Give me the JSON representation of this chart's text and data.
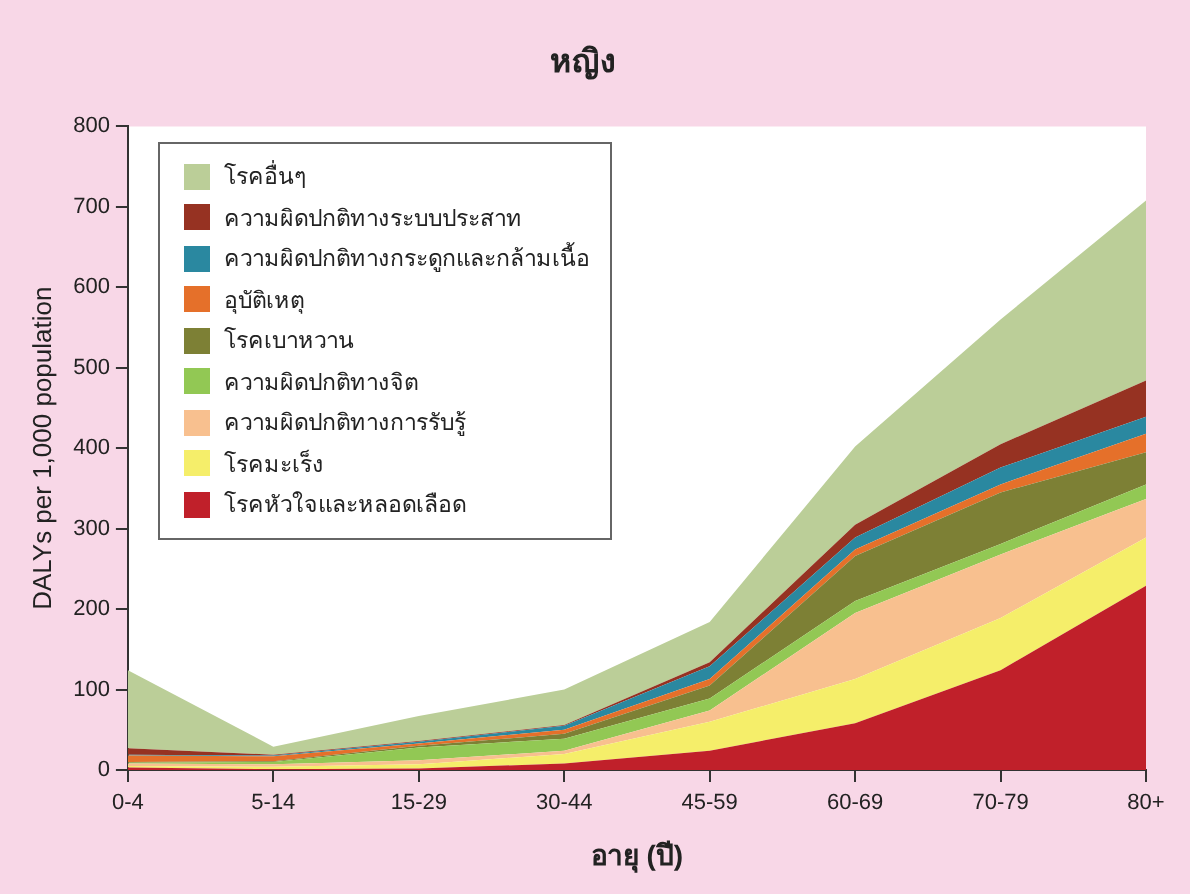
{
  "chart_data": {
    "type": "area",
    "title": "หญิง",
    "xlabel": "อายุ (ปี)",
    "ylabel": "DALYs per 1,000 population",
    "stacked": true,
    "legend": "top left",
    "grid": false,
    "categories": [
      "0-4",
      "5-14",
      "15-29",
      "30-44",
      "45-59",
      "60-69",
      "70-79",
      "80+"
    ],
    "ylim": [
      0,
      800
    ],
    "yticks": [
      0,
      100,
      200,
      300,
      400,
      500,
      600,
      700,
      800
    ],
    "series": [
      {
        "name": "โรคหัวใจและหลอดเลือด",
        "color": "#c0202a",
        "values": [
          3,
          1,
          2,
          8,
          24,
          58,
          124,
          229
        ]
      },
      {
        "name": "โรคมะเร็ง",
        "color": "#f5ee6a",
        "values": [
          2,
          3,
          5,
          12,
          36,
          55,
          65,
          60
        ]
      },
      {
        "name": "ความผิดปกติทางการรับรู้",
        "color": "#f8c08f",
        "values": [
          3,
          3,
          5,
          4,
          14,
          82,
          79,
          48
        ]
      },
      {
        "name": "ความผิดปกติทางจิต",
        "color": "#92c854",
        "values": [
          1,
          3,
          16,
          15,
          15,
          15,
          13,
          18
        ]
      },
      {
        "name": "โรคเบาหวาน",
        "color": "#7d8035",
        "values": [
          1,
          1,
          2,
          6,
          16,
          56,
          64,
          40
        ]
      },
      {
        "name": "อุบัติเหตุ",
        "color": "#e5702a",
        "values": [
          8,
          6,
          3,
          5,
          8,
          8,
          10,
          23
        ]
      },
      {
        "name": "ความผิดปกติทางกระดูกและกล้ามเนื้อ",
        "color": "#2a88a0",
        "values": [
          1,
          1,
          2,
          5,
          16,
          15,
          21,
          21
        ]
      },
      {
        "name": "ความผิดปกติทางระบบประสาท",
        "color": "#963222",
        "values": [
          8,
          1,
          1,
          1,
          5,
          16,
          29,
          45
        ]
      },
      {
        "name": "โรคอื่นๆ",
        "color": "#bbce98",
        "values": [
          97,
          10,
          31,
          44,
          50,
          97,
          155,
          224
        ]
      }
    ]
  }
}
